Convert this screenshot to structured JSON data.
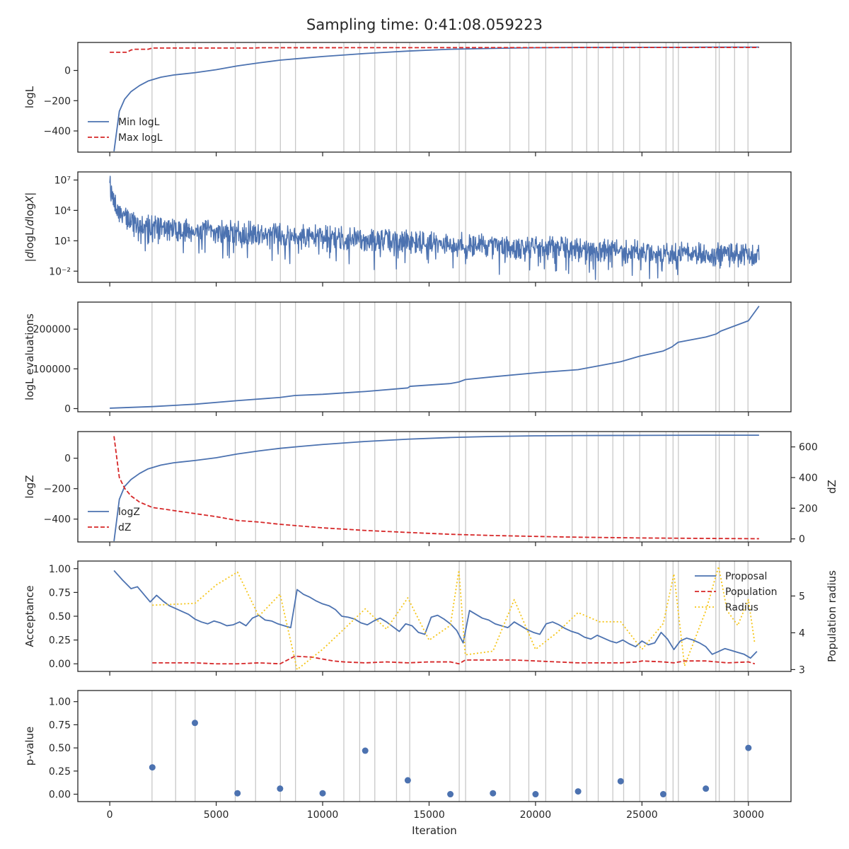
{
  "figure": {
    "title": "Sampling time: 0:41:08.059223",
    "xlabel": "Iteration",
    "xlim": [
      -1500,
      32000
    ],
    "xticks": [
      0,
      5000,
      10000,
      15000,
      20000,
      25000,
      30000
    ],
    "xtick_labels": [
      "0",
      "5000",
      "10000",
      "15000",
      "20000",
      "25000",
      "30000"
    ],
    "insertion_lines": [
      1985,
      3095,
      4010,
      5895,
      6850,
      8015,
      8725,
      10995,
      11740,
      12450,
      13470,
      14090,
      16415,
      16715,
      18795,
      19685,
      20480,
      21720,
      22405,
      22945,
      23630,
      24140,
      24895,
      26130,
      26460,
      26710,
      28470,
      28630,
      29350,
      29980
    ],
    "colors": {
      "blue": "#4c72b0",
      "red": "#d62728",
      "yellow": "#f5c518",
      "grid": "#c8c8c8",
      "frame": "#262626"
    }
  },
  "chart_data": [
    {
      "id": "logl",
      "type": "line",
      "ylabel": "logL",
      "ylim": [
        -540,
        185
      ],
      "yticks": [
        -400,
        -200,
        0
      ],
      "ytick_labels": [
        "−400",
        "−200",
        "0"
      ],
      "legend": {
        "placement": "lower-left",
        "entries": [
          "Min logL",
          "Max logL"
        ]
      },
      "series": [
        {
          "name": "Min logL",
          "style": "solid",
          "color": "#4c72b0",
          "x": [
            200,
            450,
            700,
            1000,
            1400,
            1800,
            2400,
            3000,
            4000,
            5000,
            6000,
            7000,
            8000,
            9000,
            10000,
            11000,
            12000,
            13000,
            14000,
            15000,
            16000,
            17000,
            18000,
            19000,
            20000,
            21000,
            22000,
            23000,
            24000,
            25000,
            26000,
            27000,
            28000,
            29000,
            30000,
            30500
          ],
          "y": [
            -535,
            -270,
            -190,
            -140,
            -100,
            -70,
            -45,
            -30,
            -15,
            5,
            30,
            50,
            68,
            80,
            92,
            102,
            112,
            120,
            128,
            134,
            140,
            143,
            146,
            148,
            150,
            151,
            152,
            152,
            153,
            153,
            153,
            153,
            154,
            154,
            154,
            154
          ]
        },
        {
          "name": "Max logL",
          "style": "dashed",
          "color": "#d62728",
          "x": [
            0,
            800,
            1000,
            1200,
            1800,
            2000,
            6800,
            7000,
            30500
          ],
          "y": [
            120,
            120,
            135,
            140,
            140,
            148,
            148,
            150,
            152
          ]
        }
      ]
    },
    {
      "id": "dlogl",
      "type": "line",
      "ylabel": "|dlogL/dlogX|",
      "log_y": true,
      "ylim_log10": [
        -3.1,
        7.8
      ],
      "yticks_log10": [
        -2,
        1,
        4,
        7
      ],
      "ytick_labels": [
        "10⁻²",
        "10¹",
        "10⁴",
        "10⁷"
      ],
      "series": [
        {
          "name": "",
          "style": "noisy",
          "color": "#4c72b0",
          "x": [
            0,
            50,
            100,
            200,
            400,
            700,
            1000,
            1500,
            2000,
            3000,
            5000,
            8000,
            12000,
            16000,
            20000,
            25000,
            30000,
            30500
          ],
          "log10_center": [
            7.2,
            6.0,
            5.2,
            4.4,
            3.6,
            3.1,
            2.8,
            2.5,
            2.2,
            1.9,
            1.7,
            1.4,
            0.9,
            0.5,
            0.1,
            -0.3,
            -0.7,
            -0.7
          ]
        }
      ]
    },
    {
      "id": "evals",
      "type": "line",
      "ylabel": "logL evaluations",
      "ylim": [
        -8000,
        268000
      ],
      "yticks": [
        0,
        100000,
        200000
      ],
      "ytick_labels": [
        "0",
        "100000",
        "200000"
      ],
      "series": [
        {
          "name": "",
          "style": "solid",
          "color": "#4c72b0",
          "x": [
            0,
            2000,
            4000,
            6000,
            8000,
            8700,
            10000,
            12000,
            14000,
            14100,
            16000,
            16400,
            16700,
            18000,
            20000,
            22000,
            24000,
            24900,
            26000,
            26400,
            26700,
            28000,
            28500,
            28700,
            30000,
            30500
          ],
          "y": [
            1000,
            5000,
            11000,
            20000,
            28000,
            33000,
            36000,
            43000,
            52000,
            56000,
            63000,
            67000,
            73000,
            80000,
            90000,
            98000,
            118000,
            132000,
            145000,
            155000,
            167000,
            180000,
            188000,
            195000,
            221000,
            258000
          ]
        }
      ]
    },
    {
      "id": "logz",
      "type": "line",
      "ylabel": "logZ",
      "ylabel_right": "dZ",
      "ylim": [
        -550,
        175
      ],
      "yticks": [
        -400,
        -200,
        0
      ],
      "ytick_labels": [
        "−400",
        "−200",
        "0"
      ],
      "ylim_right": [
        -20,
        700
      ],
      "yticks_right": [
        0,
        200,
        400,
        600
      ],
      "ytick_labels_right": [
        "0",
        "200",
        "400",
        "600"
      ],
      "legend": {
        "placement": "lower-left",
        "entries": [
          "logZ",
          "dZ"
        ]
      },
      "series": [
        {
          "name": "logZ",
          "style": "solid",
          "color": "#4c72b0",
          "axis": "left",
          "x": [
            200,
            450,
            700,
            1000,
            1400,
            1800,
            2400,
            3000,
            4000,
            5000,
            6000,
            7000,
            8000,
            9000,
            10000,
            12000,
            14000,
            16000,
            18000,
            20000,
            22000,
            25000,
            28000,
            30500
          ],
          "y": [
            -545,
            -270,
            -185,
            -140,
            -100,
            -70,
            -45,
            -30,
            -15,
            3,
            28,
            48,
            65,
            78,
            90,
            110,
            125,
            136,
            143,
            147,
            149,
            150,
            151,
            151
          ]
        },
        {
          "name": "dZ",
          "style": "dashed",
          "color": "#d62728",
          "axis": "right",
          "x": [
            200,
            300,
            450,
            700,
            1000,
            1400,
            2000,
            3000,
            4000,
            5000,
            6000,
            7000,
            8000,
            10000,
            12000,
            14000,
            16000,
            18000,
            20000,
            22000,
            25000,
            28000,
            30500
          ],
          "y": [
            670,
            560,
            400,
            330,
            280,
            240,
            205,
            185,
            165,
            145,
            120,
            110,
            95,
            72,
            55,
            42,
            30,
            22,
            16,
            11,
            6,
            3,
            1
          ]
        }
      ]
    },
    {
      "id": "acceptance",
      "type": "line",
      "ylabel": "Acceptance",
      "ylabel_right": "Population radius",
      "ylim": [
        -0.08,
        1.08
      ],
      "yticks": [
        0,
        0.25,
        0.5,
        0.75,
        1.0
      ],
      "ytick_labels": [
        "0.00",
        "0.25",
        "0.50",
        "0.75",
        "1.00"
      ],
      "ylim_right": [
        2.95,
        5.95
      ],
      "yticks_right": [
        3,
        4,
        5
      ],
      "ytick_labels_right": [
        "3",
        "4",
        "5"
      ],
      "legend": {
        "placement": "top-right",
        "entries": [
          "Proposal",
          "Population",
          "Radius"
        ]
      },
      "series": [
        {
          "name": "Proposal",
          "style": "solid",
          "color": "#4c72b0",
          "axis": "left",
          "x": [
            200,
            600,
            1000,
            1300,
            1600,
            1900,
            2200,
            2500,
            2800,
            3100,
            3400,
            3700,
            4000,
            4300,
            4600,
            4900,
            5200,
            5500,
            5800,
            6100,
            6400,
            6700,
            7000,
            7300,
            7600,
            7900,
            8200,
            8500,
            8800,
            9100,
            9400,
            9700,
            10000,
            10300,
            10600,
            10900,
            11200,
            11500,
            11800,
            12100,
            12400,
            12700,
            13000,
            13300,
            13600,
            13900,
            14200,
            14500,
            14800,
            15100,
            15400,
            15700,
            16000,
            16300,
            16600,
            16900,
            17200,
            17500,
            17800,
            18100,
            18400,
            18700,
            19000,
            19300,
            19600,
            19900,
            20200,
            20500,
            20800,
            21100,
            21400,
            21700,
            22000,
            22300,
            22600,
            22900,
            23200,
            23500,
            23800,
            24100,
            24400,
            24700,
            25000,
            25300,
            25600,
            25900,
            26200,
            26500,
            26800,
            27100,
            27400,
            27700,
            28000,
            28300,
            28600,
            28900,
            29200,
            29500,
            29800,
            30100,
            30400
          ],
          "y": [
            0.98,
            0.88,
            0.79,
            0.81,
            0.73,
            0.65,
            0.72,
            0.66,
            0.61,
            0.58,
            0.55,
            0.52,
            0.47,
            0.44,
            0.42,
            0.45,
            0.43,
            0.4,
            0.41,
            0.44,
            0.4,
            0.48,
            0.51,
            0.46,
            0.45,
            0.42,
            0.4,
            0.38,
            0.78,
            0.73,
            0.7,
            0.66,
            0.63,
            0.61,
            0.57,
            0.5,
            0.49,
            0.47,
            0.43,
            0.41,
            0.45,
            0.48,
            0.44,
            0.39,
            0.34,
            0.42,
            0.4,
            0.33,
            0.31,
            0.49,
            0.51,
            0.47,
            0.42,
            0.35,
            0.22,
            0.56,
            0.52,
            0.48,
            0.46,
            0.42,
            0.4,
            0.38,
            0.44,
            0.4,
            0.36,
            0.33,
            0.31,
            0.42,
            0.44,
            0.41,
            0.37,
            0.34,
            0.32,
            0.28,
            0.26,
            0.3,
            0.27,
            0.24,
            0.22,
            0.25,
            0.21,
            0.18,
            0.24,
            0.2,
            0.22,
            0.33,
            0.26,
            0.15,
            0.24,
            0.27,
            0.25,
            0.22,
            0.18,
            0.1,
            0.13,
            0.16,
            0.14,
            0.12,
            0.1,
            0.06,
            0.13
          ]
        },
        {
          "name": "Population",
          "style": "dashed",
          "color": "#d62728",
          "axis": "left",
          "x": [
            2000,
            4000,
            5000,
            6000,
            7000,
            8000,
            8700,
            9500,
            10500,
            11000,
            12000,
            13000,
            14000,
            15000,
            16000,
            16400,
            16700,
            18000,
            19000,
            20000,
            21000,
            22000,
            24000,
            24800,
            25000,
            26000,
            26500,
            27000,
            28000,
            29000,
            30000,
            30300
          ],
          "y": [
            0.01,
            0.01,
            0.0,
            0.0,
            0.01,
            0.0,
            0.08,
            0.07,
            0.03,
            0.02,
            0.01,
            0.02,
            0.01,
            0.02,
            0.02,
            0.0,
            0.04,
            0.04,
            0.04,
            0.03,
            0.02,
            0.01,
            0.01,
            0.02,
            0.03,
            0.02,
            0.01,
            0.03,
            0.03,
            0.01,
            0.02,
            0.0
          ]
        },
        {
          "name": "Radius",
          "style": "dotted",
          "color": "#f5c518",
          "axis": "right",
          "x": [
            2000,
            4000,
            5000,
            6000,
            7000,
            8000,
            8800,
            10000,
            11000,
            12000,
            13000,
            14000,
            15000,
            16000,
            16400,
            16700,
            18000,
            19000,
            20000,
            21000,
            22000,
            23000,
            24000,
            25000,
            26000,
            26500,
            27000,
            28000,
            28600,
            29000,
            29500,
            30000,
            30300
          ],
          "y": [
            4.75,
            4.8,
            5.3,
            5.65,
            4.45,
            5.05,
            3.0,
            3.55,
            4.1,
            4.65,
            4.1,
            4.95,
            3.8,
            4.2,
            5.7,
            3.4,
            3.5,
            4.9,
            3.55,
            4.0,
            4.55,
            4.3,
            4.3,
            3.55,
            4.25,
            5.6,
            3.1,
            4.6,
            5.8,
            4.6,
            4.2,
            4.9,
            3.7
          ]
        }
      ]
    },
    {
      "id": "pvalue",
      "type": "scatter",
      "ylabel": "p-value",
      "ylim": [
        -0.08,
        1.12
      ],
      "yticks": [
        0,
        0.25,
        0.5,
        0.75,
        1.0
      ],
      "ytick_labels": [
        "0.00",
        "0.25",
        "0.50",
        "0.75",
        "1.00"
      ],
      "series": [
        {
          "name": "",
          "color": "#4c72b0",
          "x": [
            2000,
            4000,
            6000,
            8000,
            10000,
            12000,
            14000,
            16000,
            18000,
            20000,
            22000,
            24000,
            26000,
            28000,
            30000
          ],
          "y": [
            0.29,
            0.77,
            0.01,
            0.06,
            0.01,
            0.47,
            0.15,
            0.0,
            0.01,
            0.0,
            0.03,
            0.14,
            0.0,
            0.06,
            0.5
          ]
        }
      ]
    }
  ]
}
